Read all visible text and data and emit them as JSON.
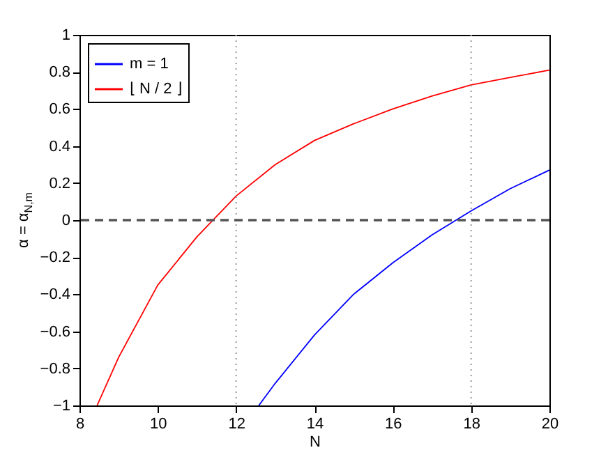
{
  "chart_data": {
    "type": "line",
    "xlabel": "N",
    "ylabel": "α = α$_{N,m}$",
    "xlim": [
      8,
      20
    ],
    "xticks": [
      8,
      10,
      12,
      14,
      16,
      18,
      20
    ],
    "ylim": [
      -1,
      1
    ],
    "yticks": [
      -1,
      -0.8,
      -0.6,
      -0.4,
      -0.2,
      0,
      0.2,
      0.4,
      0.6,
      0.8,
      1
    ],
    "series": [
      {
        "name": "m = 1",
        "color": "#0000ff",
        "x": [
          12.58,
          13,
          14,
          15,
          16,
          17,
          18,
          19,
          20
        ],
        "values": [
          -1,
          -0.88,
          -0.62,
          -0.4,
          -0.23,
          -0.08,
          0.05,
          0.17,
          0.27
        ]
      },
      {
        "name": "⌊ N / 2 ⌋",
        "color": "#ff0000",
        "x": [
          8.45,
          9,
          10,
          11,
          12,
          13,
          14,
          15,
          16,
          17,
          18,
          19,
          20
        ],
        "values": [
          -1,
          -0.74,
          -0.35,
          -0.09,
          0.13,
          0.3,
          0.43,
          0.52,
          0.6,
          0.67,
          0.73,
          0.77,
          0.81
        ]
      }
    ],
    "ref_lines": [
      {
        "axis": "y",
        "value": 0,
        "color": "#555555",
        "line_style": "dashed"
      },
      {
        "axis": "x",
        "value": 12,
        "color": "#999999",
        "line_style": "dotted"
      },
      {
        "axis": "x",
        "value": 18,
        "color": "#999999",
        "line_style": "dotted"
      }
    ],
    "legend": "top left",
    "grid": false,
    "marker": "none",
    "line_style": "solid"
  }
}
